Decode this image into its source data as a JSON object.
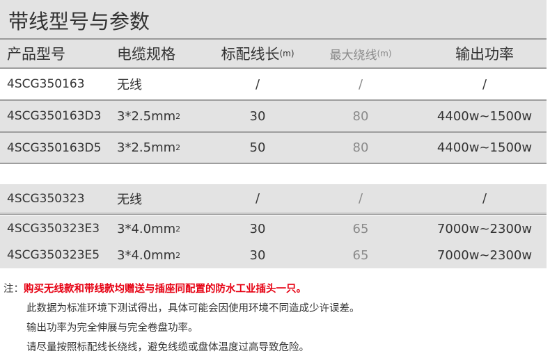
{
  "title": "带线型号与参数",
  "header": {
    "model": "产品型号",
    "cable": "电缆规格",
    "std_len": "标配线长",
    "std_unit": "(m)",
    "max_len": "最大绕线",
    "max_unit": "(m)",
    "power": "输出功率"
  },
  "group1": [
    {
      "model": "4SCG350163",
      "cable": "无线",
      "std_len": "/",
      "max_len": "/",
      "power": "/"
    },
    {
      "model": "4SCG350163D3",
      "cable": "3*2.5mm",
      "sup": "2",
      "std_len": "30",
      "max_len": "80",
      "power": "4400w~1500w"
    },
    {
      "model": "4SCG350163D5",
      "cable": "3*2.5mm",
      "sup": "2",
      "std_len": "50",
      "max_len": "80",
      "power": "4400w~1500w"
    }
  ],
  "group2": [
    {
      "model": "4SCG350323",
      "cable": "无线",
      "std_len": "/",
      "max_len": "/",
      "power": "/"
    },
    {
      "model": "4SCG350323E3",
      "cable": "3*4.0mm",
      "sup": "2",
      "std_len": "30",
      "max_len": "65",
      "power": "7000w~2300w"
    },
    {
      "model": "4SCG350323E5",
      "cable": "3*4.0mm",
      "sup": "2",
      "std_len": "30",
      "max_len": "65",
      "power": "7000w~2300w"
    }
  ],
  "notes": {
    "label": "注：",
    "highlight": "购买无线款和带线款均赠送与插座同配置的防水工业插头一只。",
    "lines": [
      "此数据为标准环境下测试得出，具体可能会因使用环境不同造成少许误差。",
      "输出功率为完全伸展与完全卷盘功率。",
      "请尽量按照标配线长绕线，避免线缆或盘体温度过高导致危险。"
    ]
  },
  "colors": {
    "band": "#e3e3e3",
    "rule": "#9e9e9e",
    "note_red": "#e60012",
    "muted": "#8a8a8a"
  }
}
